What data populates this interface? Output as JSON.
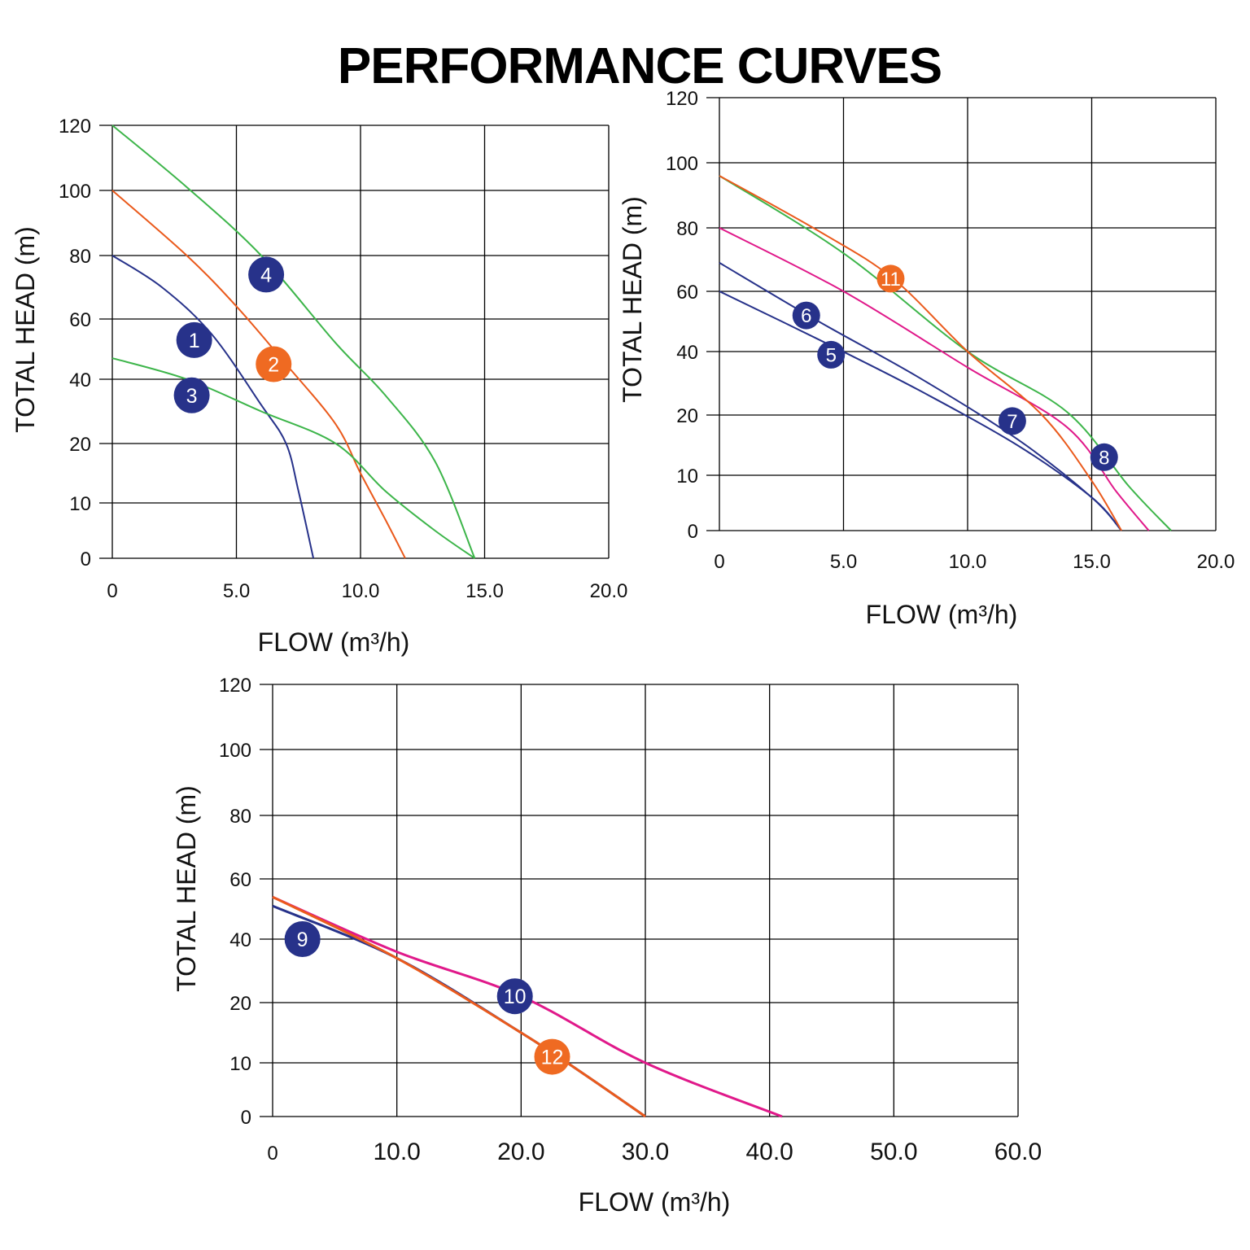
{
  "title": "PERFORMANCE CURVES",
  "colors": {
    "blue": "#27328a",
    "orange": "#ea5a1c",
    "green": "#3db54a",
    "magenta": "#e0198a",
    "badge_blue": "#27328a",
    "badge_orange": "#ef6a22"
  },
  "chart_data": [
    {
      "type": "line",
      "xlabel": "FLOW (m³/h)",
      "ylabel": "TOTAL HEAD (m)",
      "xticks": [
        "0",
        "5.0",
        "10.0",
        "15.0",
        "20.0"
      ],
      "yticks": [
        "0",
        "10",
        "20",
        "40",
        "60",
        "80",
        "100",
        "120"
      ],
      "series": [
        {
          "name": "1",
          "color": "blue",
          "points": [
            [
              0,
              80
            ],
            [
              2,
              70
            ],
            [
              4,
              55
            ],
            [
              6,
              32
            ],
            [
              7,
              20
            ],
            [
              7.5,
              12
            ],
            [
              8.1,
              0
            ]
          ],
          "label_at": [
            3.3,
            53
          ]
        },
        {
          "name": "2",
          "color": "orange",
          "points": [
            [
              0,
              100
            ],
            [
              3,
              80
            ],
            [
              5,
              64
            ],
            [
              7,
              45
            ],
            [
              9,
              26
            ],
            [
              10,
              15
            ],
            [
              11,
              7
            ],
            [
              11.8,
              0
            ]
          ],
          "label_at": [
            6.5,
            45
          ]
        },
        {
          "name": "3",
          "color": "green",
          "points": [
            [
              0,
              47
            ],
            [
              3,
              40
            ],
            [
              6,
              30
            ],
            [
              9,
              20
            ],
            [
              11,
              12
            ],
            [
              13,
              5
            ],
            [
              14.6,
              0
            ]
          ],
          "label_at": [
            3.2,
            35
          ]
        },
        {
          "name": "4",
          "color": "green",
          "points": [
            [
              0,
              120
            ],
            [
              3,
              101
            ],
            [
              6,
              80
            ],
            [
              9,
              52
            ],
            [
              11,
              35
            ],
            [
              13,
              17
            ],
            [
              14.6,
              0
            ]
          ],
          "label_at": [
            6.2,
            74
          ]
        }
      ]
    },
    {
      "type": "line",
      "xlabel": "FLOW (m³/h)",
      "ylabel": "TOTAL HEAD (m)",
      "xticks": [
        "0",
        "5.0",
        "10.0",
        "15.0",
        "20.0"
      ],
      "yticks": [
        "0",
        "10",
        "20",
        "40",
        "60",
        "80",
        "100",
        "120"
      ],
      "series": [
        {
          "name": "5",
          "color": "blue",
          "points": [
            [
              0,
              60
            ],
            [
              4,
              44
            ],
            [
              8,
              28
            ],
            [
              12,
              15
            ],
            [
              15,
              6
            ],
            [
              16.2,
              0
            ]
          ],
          "label_at": [
            4.5,
            39
          ]
        },
        {
          "name": "6",
          "color": "blue",
          "points": [
            [
              0,
              69
            ],
            [
              4,
              50
            ],
            [
              8,
              32
            ],
            [
              12,
              16
            ],
            [
              15,
              6
            ],
            [
              16.2,
              0
            ]
          ],
          "label_at": [
            3.5,
            52
          ]
        },
        {
          "name": "7",
          "color": "magenta",
          "points": [
            [
              0,
              80
            ],
            [
              5,
              60
            ],
            [
              10,
              35
            ],
            [
              14,
              18
            ],
            [
              16,
              7
            ],
            [
              17.3,
              0
            ]
          ],
          "label_at": [
            11.8,
            19
          ]
        },
        {
          "name": "8",
          "color": "green",
          "points": [
            [
              0,
              96
            ],
            [
              5,
              72
            ],
            [
              10,
              40
            ],
            [
              14,
              21
            ],
            [
              16.5,
              8
            ],
            [
              18.2,
              0
            ]
          ],
          "label_at": [
            15.5,
            13
          ]
        },
        {
          "name": "11",
          "color": "orange",
          "points": [
            [
              0,
              96
            ],
            [
              4,
              79
            ],
            [
              7,
              64
            ],
            [
              10,
              40
            ],
            [
              13,
              20
            ],
            [
              15,
              9
            ],
            [
              16.2,
              0
            ]
          ],
          "label_at": [
            6.9,
            64
          ]
        }
      ]
    },
    {
      "type": "line",
      "xlabel": "FLOW (m³/h)",
      "ylabel": "TOTAL HEAD (m)",
      "xticks": [
        "0",
        "10.0",
        "20.0",
        "30.0",
        "40.0",
        "50.0",
        "60.0"
      ],
      "yticks": [
        "0",
        "10",
        "20",
        "40",
        "60",
        "80",
        "100",
        "120"
      ],
      "series": [
        {
          "name": "9",
          "color": "blue",
          "points": [
            [
              0,
              51
            ],
            [
              10,
              34
            ],
            [
              20,
              15
            ],
            [
              25,
              8
            ],
            [
              30,
              0
            ]
          ],
          "label_at": [
            2.4,
            40
          ]
        },
        {
          "name": "10",
          "color": "magenta",
          "points": [
            [
              0,
              54
            ],
            [
              10,
              36
            ],
            [
              20,
              22
            ],
            [
              30,
              10
            ],
            [
              41,
              0
            ]
          ],
          "label_at": [
            19.5,
            22
          ]
        },
        {
          "name": "12",
          "color": "orange",
          "points": [
            [
              0,
              54
            ],
            [
              10,
              34
            ],
            [
              20,
              15
            ],
            [
              25,
              8
            ],
            [
              30,
              0
            ]
          ],
          "label_at": [
            22.5,
            11
          ]
        }
      ]
    }
  ]
}
